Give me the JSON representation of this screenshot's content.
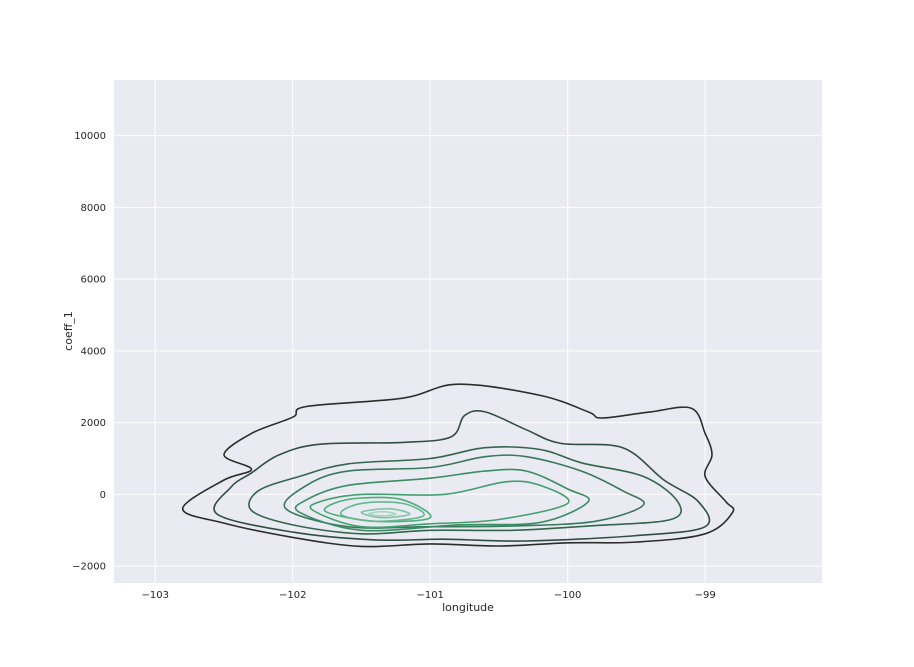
{
  "chart_data": {
    "type": "contour",
    "title": "",
    "xlabel": "longitude",
    "ylabel": "coeff_1",
    "xlim": [
      -103.3,
      -98.15
    ],
    "ylim": [
      -2470,
      11550
    ],
    "xticks": [
      -103,
      -102,
      -101,
      -100,
      -99
    ],
    "yticks": [
      -2000,
      0,
      2000,
      4000,
      6000,
      8000,
      10000
    ],
    "xtick_labels": [
      "−103",
      "−102",
      "−101",
      "−100",
      "−99"
    ],
    "ytick_labels": [
      "−2000",
      "0",
      "2000",
      "4000",
      "6000",
      "8000",
      "10000"
    ],
    "grid": true,
    "background": "#eaeaf2",
    "grid_color": "#ffffff",
    "contours": [
      {
        "level": 1,
        "color": "#2d2d2d",
        "points": [
          [
            -102.8,
            -400
          ],
          [
            -102.5,
            -800
          ],
          [
            -102.0,
            -1200
          ],
          [
            -101.5,
            -1450
          ],
          [
            -101.0,
            -1380
          ],
          [
            -100.5,
            -1440
          ],
          [
            -100.0,
            -1350
          ],
          [
            -99.5,
            -1330
          ],
          [
            -99.0,
            -1100
          ],
          [
            -98.8,
            -500
          ],
          [
            -98.85,
            -200
          ],
          [
            -99.0,
            500
          ],
          [
            -98.95,
            1100
          ],
          [
            -99.0,
            1700
          ],
          [
            -99.1,
            2400
          ],
          [
            -99.4,
            2300
          ],
          [
            -99.75,
            2130
          ],
          [
            -99.85,
            2300
          ],
          [
            -100.2,
            2760
          ],
          [
            -100.8,
            3070
          ],
          [
            -101.2,
            2680
          ],
          [
            -101.9,
            2450
          ],
          [
            -102.0,
            2150
          ],
          [
            -102.3,
            1700
          ],
          [
            -102.5,
            1100
          ],
          [
            -102.3,
            700
          ],
          [
            -102.5,
            400
          ]
        ]
      },
      {
        "level": 2,
        "color": "#2f4e44",
        "points": [
          [
            -102.55,
            -550
          ],
          [
            -102.0,
            -1050
          ],
          [
            -101.4,
            -1270
          ],
          [
            -100.9,
            -1250
          ],
          [
            -100.3,
            -1300
          ],
          [
            -99.5,
            -1150
          ],
          [
            -99.0,
            -900
          ],
          [
            -99.05,
            -200
          ],
          [
            -99.3,
            400
          ],
          [
            -99.6,
            1300
          ],
          [
            -100.05,
            1420
          ],
          [
            -100.3,
            1800
          ],
          [
            -100.6,
            2300
          ],
          [
            -100.75,
            2200
          ],
          [
            -100.85,
            1600
          ],
          [
            -101.2,
            1450
          ],
          [
            -101.8,
            1400
          ],
          [
            -102.1,
            1100
          ],
          [
            -102.3,
            600
          ],
          [
            -102.45,
            200
          ]
        ]
      },
      {
        "level": 3,
        "color": "#33664c",
        "points": [
          [
            -102.3,
            -450
          ],
          [
            -102.0,
            -850
          ],
          [
            -101.5,
            -1100
          ],
          [
            -101.0,
            -1000
          ],
          [
            -100.4,
            -1000
          ],
          [
            -99.8,
            -870
          ],
          [
            -99.25,
            -700
          ],
          [
            -99.2,
            -200
          ],
          [
            -99.45,
            500
          ],
          [
            -99.9,
            880
          ],
          [
            -100.2,
            1250
          ],
          [
            -100.6,
            1300
          ],
          [
            -101.0,
            1000
          ],
          [
            -101.6,
            850
          ],
          [
            -101.95,
            500
          ],
          [
            -102.25,
            100
          ]
        ]
      },
      {
        "level": 4,
        "color": "#37795a",
        "points": [
          [
            -102.05,
            -400
          ],
          [
            -101.6,
            -900
          ],
          [
            -101.0,
            -900
          ],
          [
            -100.4,
            -880
          ],
          [
            -99.8,
            -750
          ],
          [
            -99.45,
            -300
          ],
          [
            -99.6,
            100
          ],
          [
            -99.9,
            650
          ],
          [
            -100.3,
            1050
          ],
          [
            -100.6,
            1050
          ],
          [
            -101.0,
            750
          ],
          [
            -101.6,
            650
          ],
          [
            -101.9,
            250
          ]
        ]
      },
      {
        "level": 5,
        "color": "#3b8c63",
        "points": [
          [
            -101.95,
            -500
          ],
          [
            -101.5,
            -1000
          ],
          [
            -100.8,
            -850
          ],
          [
            -100.2,
            -780
          ],
          [
            -99.85,
            -200
          ],
          [
            -100.0,
            150
          ],
          [
            -100.3,
            650
          ],
          [
            -100.6,
            650
          ],
          [
            -101.0,
            450
          ],
          [
            -101.6,
            250
          ],
          [
            -101.9,
            -150
          ]
        ]
      },
      {
        "level": 6,
        "color": "#41a06e",
        "points": [
          [
            -101.85,
            -450
          ],
          [
            -101.5,
            -900
          ],
          [
            -101.0,
            -820
          ],
          [
            -100.5,
            -700
          ],
          [
            -100.0,
            -250
          ],
          [
            -100.2,
            250
          ],
          [
            -100.45,
            350
          ],
          [
            -100.9,
            0
          ],
          [
            -101.5,
            0
          ],
          [
            -101.8,
            -200
          ]
        ]
      },
      {
        "level": 7,
        "color": "#4dad7d",
        "points": [
          [
            -101.75,
            -500
          ],
          [
            -101.4,
            -750
          ],
          [
            -101.0,
            -650
          ],
          [
            -101.2,
            -150
          ],
          [
            -101.5,
            -100
          ],
          [
            -101.7,
            -250
          ]
        ]
      },
      {
        "level": 8,
        "color": "#63b88f",
        "points": [
          [
            -101.65,
            -550
          ],
          [
            -101.4,
            -750
          ],
          [
            -101.05,
            -600
          ],
          [
            -101.2,
            -250
          ],
          [
            -101.5,
            -250
          ]
        ]
      },
      {
        "level": 9,
        "color": "#82c4a5",
        "points": [
          [
            -101.5,
            -500
          ],
          [
            -101.35,
            -650
          ],
          [
            -101.15,
            -550
          ],
          [
            -101.3,
            -400
          ]
        ]
      },
      {
        "level": 10,
        "color": "#a9d5bf",
        "points": [
          [
            -101.45,
            -550
          ],
          [
            -101.35,
            -600
          ],
          [
            -101.25,
            -550
          ],
          [
            -101.35,
            -480
          ]
        ]
      }
    ]
  }
}
